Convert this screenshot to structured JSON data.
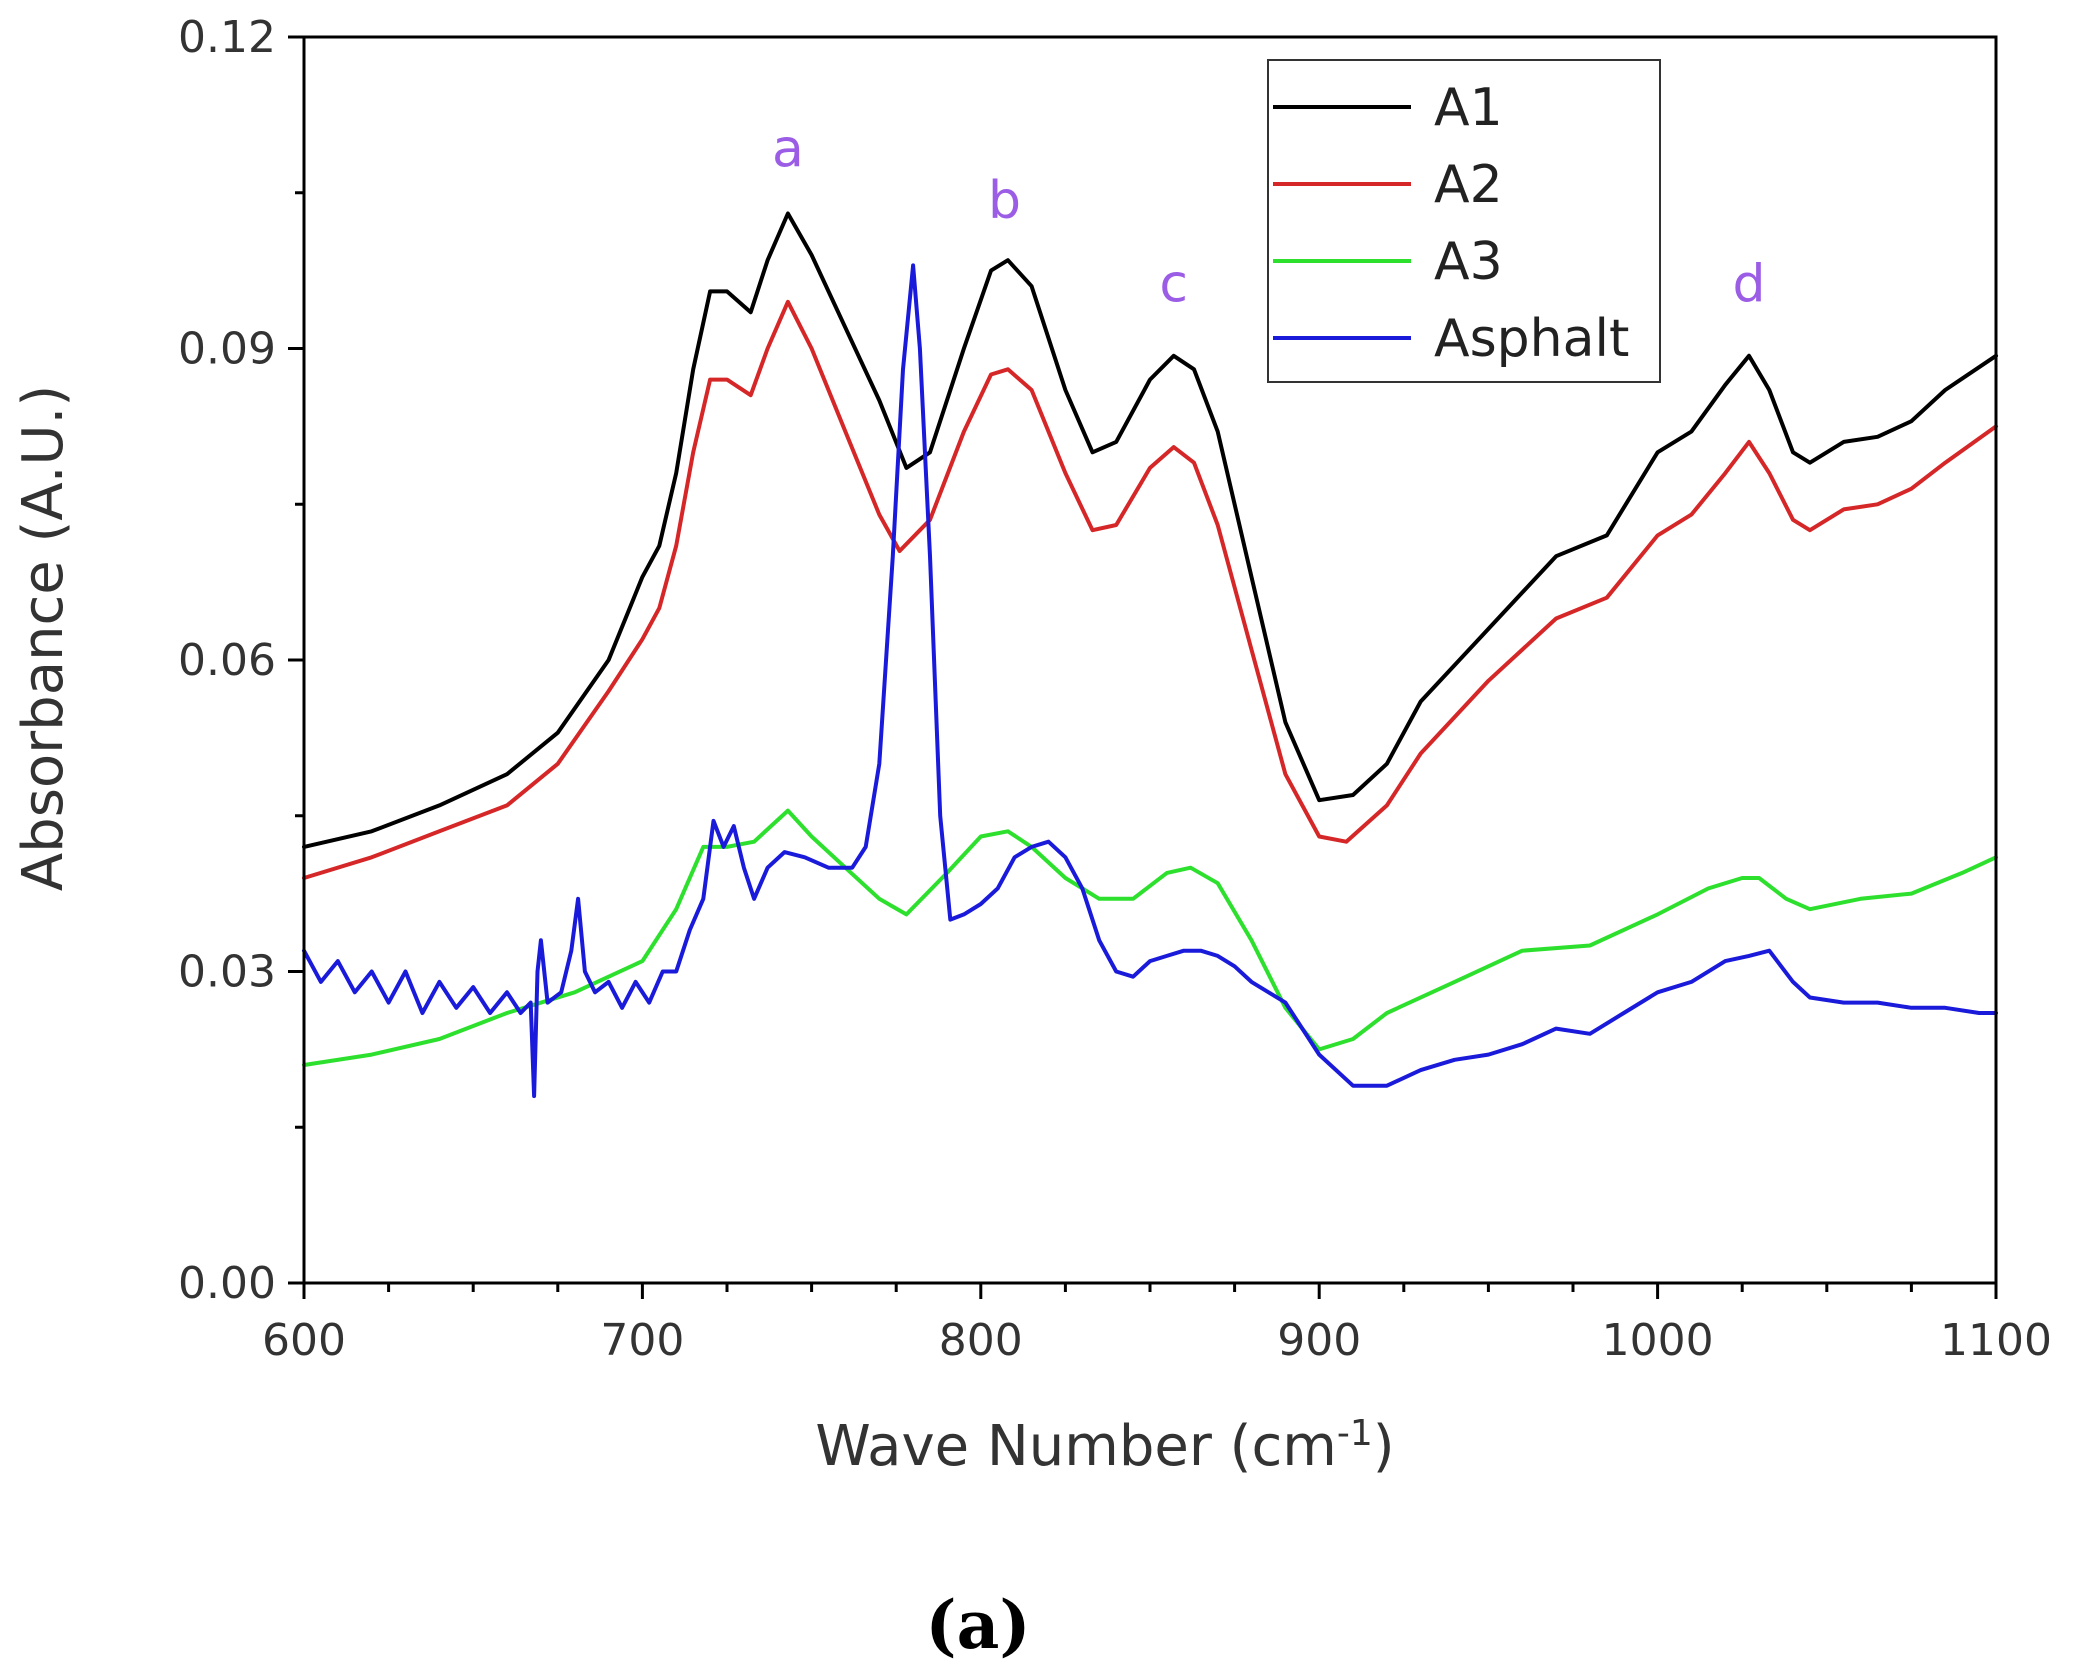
{
  "chart_data": {
    "type": "line",
    "title": "",
    "xlabel": "Wave Number (cm",
    "xlabel_superscript": "-1",
    "xlabel_suffix": ")",
    "ylabel": "Absorbance (A.U.)",
    "xlim": [
      600,
      1100
    ],
    "ylim": [
      0,
      0.12
    ],
    "xticks": [
      600,
      700,
      800,
      900,
      1000,
      1100
    ],
    "xtick_labels": [
      "600",
      "700",
      "800",
      "900",
      "1000",
      "1100"
    ],
    "yticks": [
      0,
      0.03,
      0.06,
      0.09,
      0.12
    ],
    "ytick_labels": [
      "0.00",
      "0.03",
      "0.06",
      "0.09",
      "0.12"
    ],
    "grid": false,
    "legend_position": "top-right",
    "panel_label": "(a)",
    "annotations": [
      {
        "text": "a",
        "x": 743,
        "y": 0.1035,
        "color": "#9b5de5"
      },
      {
        "text": "b",
        "x": 807,
        "y": 0.0985,
        "color": "#9b5de5"
      },
      {
        "text": "c",
        "x": 857,
        "y": 0.0905,
        "color": "#9b5de5"
      },
      {
        "text": "d",
        "x": 1027,
        "y": 0.0905,
        "color": "#9b5de5"
      }
    ],
    "series": [
      {
        "name": "A1",
        "color": "#000000",
        "x": [
          600,
          620,
          640,
          660,
          675,
          690,
          700,
          705,
          710,
          715,
          720,
          725,
          732,
          737,
          743,
          750,
          760,
          770,
          778,
          785,
          795,
          803,
          808,
          815,
          825,
          833,
          840,
          850,
          857,
          863,
          870,
          880,
          890,
          900,
          910,
          920,
          930,
          950,
          970,
          985,
          1000,
          1010,
          1020,
          1027,
          1033,
          1040,
          1045,
          1055,
          1065,
          1075,
          1085,
          1100
        ],
        "y": [
          0.042,
          0.0435,
          0.046,
          0.049,
          0.053,
          0.06,
          0.068,
          0.071,
          0.078,
          0.088,
          0.0955,
          0.0955,
          0.0935,
          0.0985,
          0.103,
          0.099,
          0.092,
          0.085,
          0.0785,
          0.08,
          0.09,
          0.0975,
          0.0985,
          0.096,
          0.086,
          0.08,
          0.081,
          0.087,
          0.0893,
          0.088,
          0.082,
          0.068,
          0.054,
          0.0465,
          0.047,
          0.05,
          0.056,
          0.063,
          0.07,
          0.072,
          0.08,
          0.082,
          0.0865,
          0.0893,
          0.086,
          0.08,
          0.079,
          0.081,
          0.0815,
          0.083,
          0.086,
          0.0893
        ]
      },
      {
        "name": "A2",
        "color": "#d62728",
        "x": [
          600,
          620,
          640,
          660,
          675,
          690,
          700,
          705,
          710,
          715,
          720,
          725,
          732,
          737,
          743,
          750,
          760,
          770,
          776,
          785,
          795,
          803,
          808,
          815,
          825,
          833,
          840,
          850,
          857,
          863,
          870,
          880,
          890,
          900,
          908,
          920,
          930,
          950,
          970,
          985,
          1000,
          1010,
          1020,
          1027,
          1033,
          1040,
          1045,
          1055,
          1065,
          1075,
          1085,
          1100
        ],
        "y": [
          0.039,
          0.041,
          0.0435,
          0.046,
          0.05,
          0.057,
          0.062,
          0.065,
          0.071,
          0.08,
          0.087,
          0.087,
          0.0855,
          0.09,
          0.0945,
          0.09,
          0.082,
          0.074,
          0.0705,
          0.0735,
          0.082,
          0.0875,
          0.088,
          0.086,
          0.078,
          0.0725,
          0.073,
          0.0785,
          0.0805,
          0.079,
          0.073,
          0.061,
          0.049,
          0.043,
          0.0425,
          0.046,
          0.051,
          0.058,
          0.064,
          0.066,
          0.072,
          0.074,
          0.078,
          0.081,
          0.078,
          0.0735,
          0.0725,
          0.0745,
          0.075,
          0.0765,
          0.079,
          0.0825
        ]
      },
      {
        "name": "A3",
        "color": "#2ee02e",
        "x": [
          600,
          620,
          640,
          660,
          680,
          700,
          710,
          718,
          725,
          733,
          738,
          743,
          750,
          760,
          770,
          778,
          790,
          800,
          808,
          815,
          825,
          835,
          845,
          855,
          862,
          870,
          880,
          890,
          900,
          910,
          920,
          940,
          960,
          980,
          1000,
          1015,
          1025,
          1030,
          1038,
          1045,
          1060,
          1075,
          1090,
          1100
        ],
        "y": [
          0.021,
          0.022,
          0.0235,
          0.026,
          0.028,
          0.031,
          0.036,
          0.042,
          0.042,
          0.0425,
          0.044,
          0.0455,
          0.043,
          0.04,
          0.037,
          0.0355,
          0.0395,
          0.043,
          0.0435,
          0.042,
          0.039,
          0.037,
          0.037,
          0.0395,
          0.04,
          0.0385,
          0.033,
          0.0265,
          0.0225,
          0.0235,
          0.026,
          0.029,
          0.032,
          0.0325,
          0.0355,
          0.038,
          0.039,
          0.039,
          0.037,
          0.036,
          0.037,
          0.0375,
          0.0395,
          0.041
        ]
      },
      {
        "name": "Asphalt",
        "color": "#1a1adb",
        "x": [
          600,
          605,
          610,
          615,
          620,
          625,
          630,
          635,
          640,
          645,
          650,
          655,
          660,
          664,
          667,
          668,
          669,
          670,
          672,
          676,
          679,
          681,
          683,
          686,
          690,
          694,
          698,
          702,
          706,
          710,
          714,
          718,
          721,
          724,
          727,
          730,
          733,
          737,
          742,
          748,
          755,
          762,
          766,
          770,
          774,
          777,
          780,
          782,
          785,
          788,
          791,
          795,
          800,
          805,
          810,
          815,
          820,
          825,
          830,
          835,
          840,
          845,
          850,
          855,
          860,
          865,
          870,
          875,
          880,
          890,
          900,
          910,
          920,
          930,
          940,
          950,
          960,
          970,
          980,
          990,
          1000,
          1010,
          1020,
          1027,
          1033,
          1040,
          1045,
          1055,
          1065,
          1075,
          1085,
          1095,
          1100
        ],
        "y": [
          0.032,
          0.029,
          0.031,
          0.028,
          0.03,
          0.027,
          0.03,
          0.026,
          0.029,
          0.0265,
          0.0285,
          0.026,
          0.028,
          0.026,
          0.027,
          0.018,
          0.03,
          0.033,
          0.027,
          0.028,
          0.032,
          0.037,
          0.03,
          0.028,
          0.029,
          0.0265,
          0.029,
          0.027,
          0.03,
          0.03,
          0.034,
          0.037,
          0.0445,
          0.042,
          0.044,
          0.04,
          0.037,
          0.04,
          0.0415,
          0.041,
          0.04,
          0.04,
          0.042,
          0.05,
          0.07,
          0.088,
          0.098,
          0.09,
          0.07,
          0.045,
          0.035,
          0.0355,
          0.0365,
          0.038,
          0.041,
          0.042,
          0.0425,
          0.041,
          0.038,
          0.033,
          0.03,
          0.0295,
          0.031,
          0.0315,
          0.032,
          0.032,
          0.0315,
          0.0305,
          0.029,
          0.027,
          0.022,
          0.019,
          0.019,
          0.0205,
          0.0215,
          0.022,
          0.023,
          0.0245,
          0.024,
          0.026,
          0.028,
          0.029,
          0.031,
          0.0315,
          0.032,
          0.029,
          0.0275,
          0.027,
          0.027,
          0.0265,
          0.0265,
          0.026,
          0.026
        ]
      }
    ]
  }
}
